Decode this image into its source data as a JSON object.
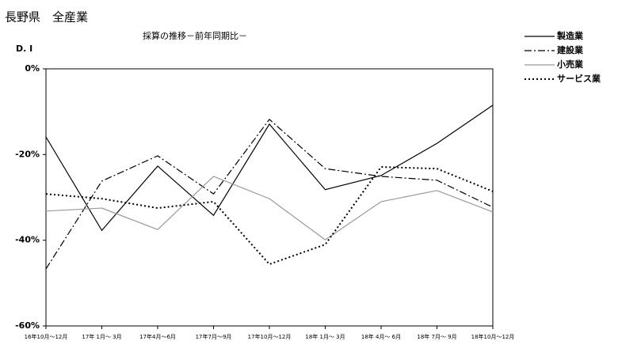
{
  "chart_data": {
    "type": "line",
    "title": "長野県　全産業",
    "subtitle": "採算の推移－前年同期比－",
    "y_label": "D. I",
    "categories": [
      "16年10月～12月",
      "17年 1月～ 3月",
      "17年4月～6月",
      "17年7月～9月",
      "17年10月～12月",
      "18年 1月～ 3月",
      "18年 4月～ 6月",
      "18年 7月～ 9月",
      "18年10月～12月"
    ],
    "series": [
      {
        "name": "製造業",
        "color": "#000000",
        "dash": "none",
        "values": [
          -15.9,
          -37.7,
          -22.7,
          -34.2,
          -12.9,
          -28.2,
          -24.9,
          -17.4,
          -8.5
        ]
      },
      {
        "name": "建設業",
        "color": "#000000",
        "dash": "9 3 2 3",
        "values": [
          -46.7,
          -26.2,
          -20.3,
          -29.2,
          -11.8,
          -23.3,
          -25.1,
          -26.0,
          -32.3
        ]
      },
      {
        "name": "小売業",
        "color": "#999999",
        "dash": "none",
        "values": [
          -33.2,
          -32.5,
          -37.5,
          -25.1,
          -30.3,
          -39.9,
          -31.0,
          -28.4,
          -33.4
        ]
      },
      {
        "name": "サービス業",
        "color": "#000000",
        "dash": "2 3",
        "values": [
          -29.2,
          -30.3,
          -32.5,
          -31.0,
          -45.6,
          -41.0,
          -22.9,
          -23.3,
          -28.6
        ]
      }
    ],
    "ylim": [
      -60,
      0
    ],
    "yticks": [
      {
        "value": 0,
        "label": "0%"
      },
      {
        "value": -20,
        "label": "-20%"
      },
      {
        "value": -40,
        "label": "-40%"
      },
      {
        "value": -60,
        "label": "-60%"
      }
    ],
    "legend": "top-right"
  }
}
